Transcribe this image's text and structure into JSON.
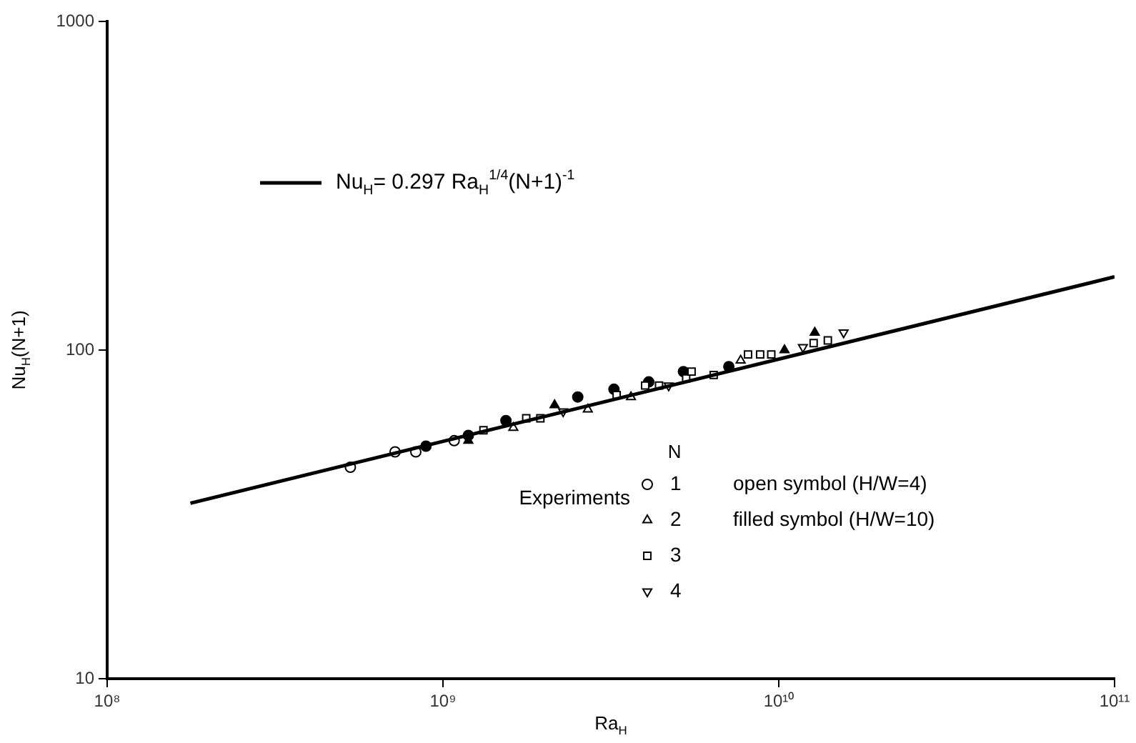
{
  "chart_data": {
    "type": "scatter",
    "xlabel": "Ra$_{H}$",
    "ylabel": "Nu$_{H}$(N+1)",
    "legend_title": "N",
    "log": "xy",
    "grid": false,
    "legend": "bottom left",
    "xlim": [
      100000000.0,
      100000000000.0
    ],
    "xticks": [
      {
        "value": 100000000.0,
        "label": "10⁸"
      },
      {
        "value": 1000000000.0,
        "label": "10⁹"
      },
      {
        "value": 10000000000.0,
        "label": "10¹⁰"
      },
      {
        "value": 100000000000.0,
        "label": "10¹¹"
      }
    ],
    "ylim": [
      10,
      1000
    ],
    "yticks": [
      10,
      100,
      1000
    ],
    "annotations": [
      "open symbol (H/W=4)",
      "filled symbol (H/W=10)",
      "Experiments"
    ],
    "series": [
      {
        "type": "line",
        "name": "Nu$_{H}$= 0.297 Ra$_{H}$$^{1/4}$(N+1)$^{-1}$",
        "color": "#000000",
        "marker": "none",
        "line_style": "solid",
        "x": [
          177000000.0,
          100000000000.0
        ],
        "values": [
          34.2,
          167
        ]
      },
      {
        "name": "1",
        "color": "#000000",
        "marker": "circle",
        "x": [
          530000000.0,
          720000000.0,
          830000000.0,
          1080000000.0
        ],
        "values": [
          44,
          49,
          49,
          53
        ]
      },
      {
        "name": "2",
        "color": "#000000",
        "marker": "triangle",
        "x": [
          1620000000.0,
          2700000000.0,
          3630000000.0,
          7700000000.0
        ],
        "values": [
          58,
          66,
          72,
          93
        ]
      },
      {
        "name": "3",
        "color": "#000000",
        "marker": "square",
        "x": [
          1320000000.0,
          1770000000.0,
          1950000000.0,
          3290000000.0,
          4000000000.0,
          4400000000.0,
          5300000000.0,
          5500000000.0,
          6400000000.0,
          8100000000.0,
          8800000000.0,
          9500000000.0,
          12700000000.0,
          14000000000.0
        ],
        "values": [
          57,
          62,
          62,
          73,
          78,
          78,
          82,
          86,
          84,
          97,
          97,
          97,
          105,
          107
        ]
      },
      {
        "name": "4",
        "color": "#000000",
        "marker": "triangle_down",
        "x": [
          2280000000.0,
          4700000000.0,
          11800000000.0,
          15600000000.0
        ],
        "values": [
          65,
          78,
          102,
          113
        ]
      },
      {
        "color": "#000000",
        "marker": "circle",
        "x": [
          890000000.0,
          1190000000.0,
          1540000000.0,
          2520000000.0,
          3230000000.0,
          4100000000.0,
          5200000000.0,
          7100000000.0
        ],
        "values": [
          51,
          55,
          61,
          72,
          76,
          80,
          86,
          89
        ]
      },
      {
        "color": "#000000",
        "marker": "triangle",
        "x": [
          1190000000.0,
          2150000000.0,
          10400000000.0,
          12800000000.0
        ],
        "values": [
          53,
          68,
          100,
          113
        ]
      }
    ]
  }
}
